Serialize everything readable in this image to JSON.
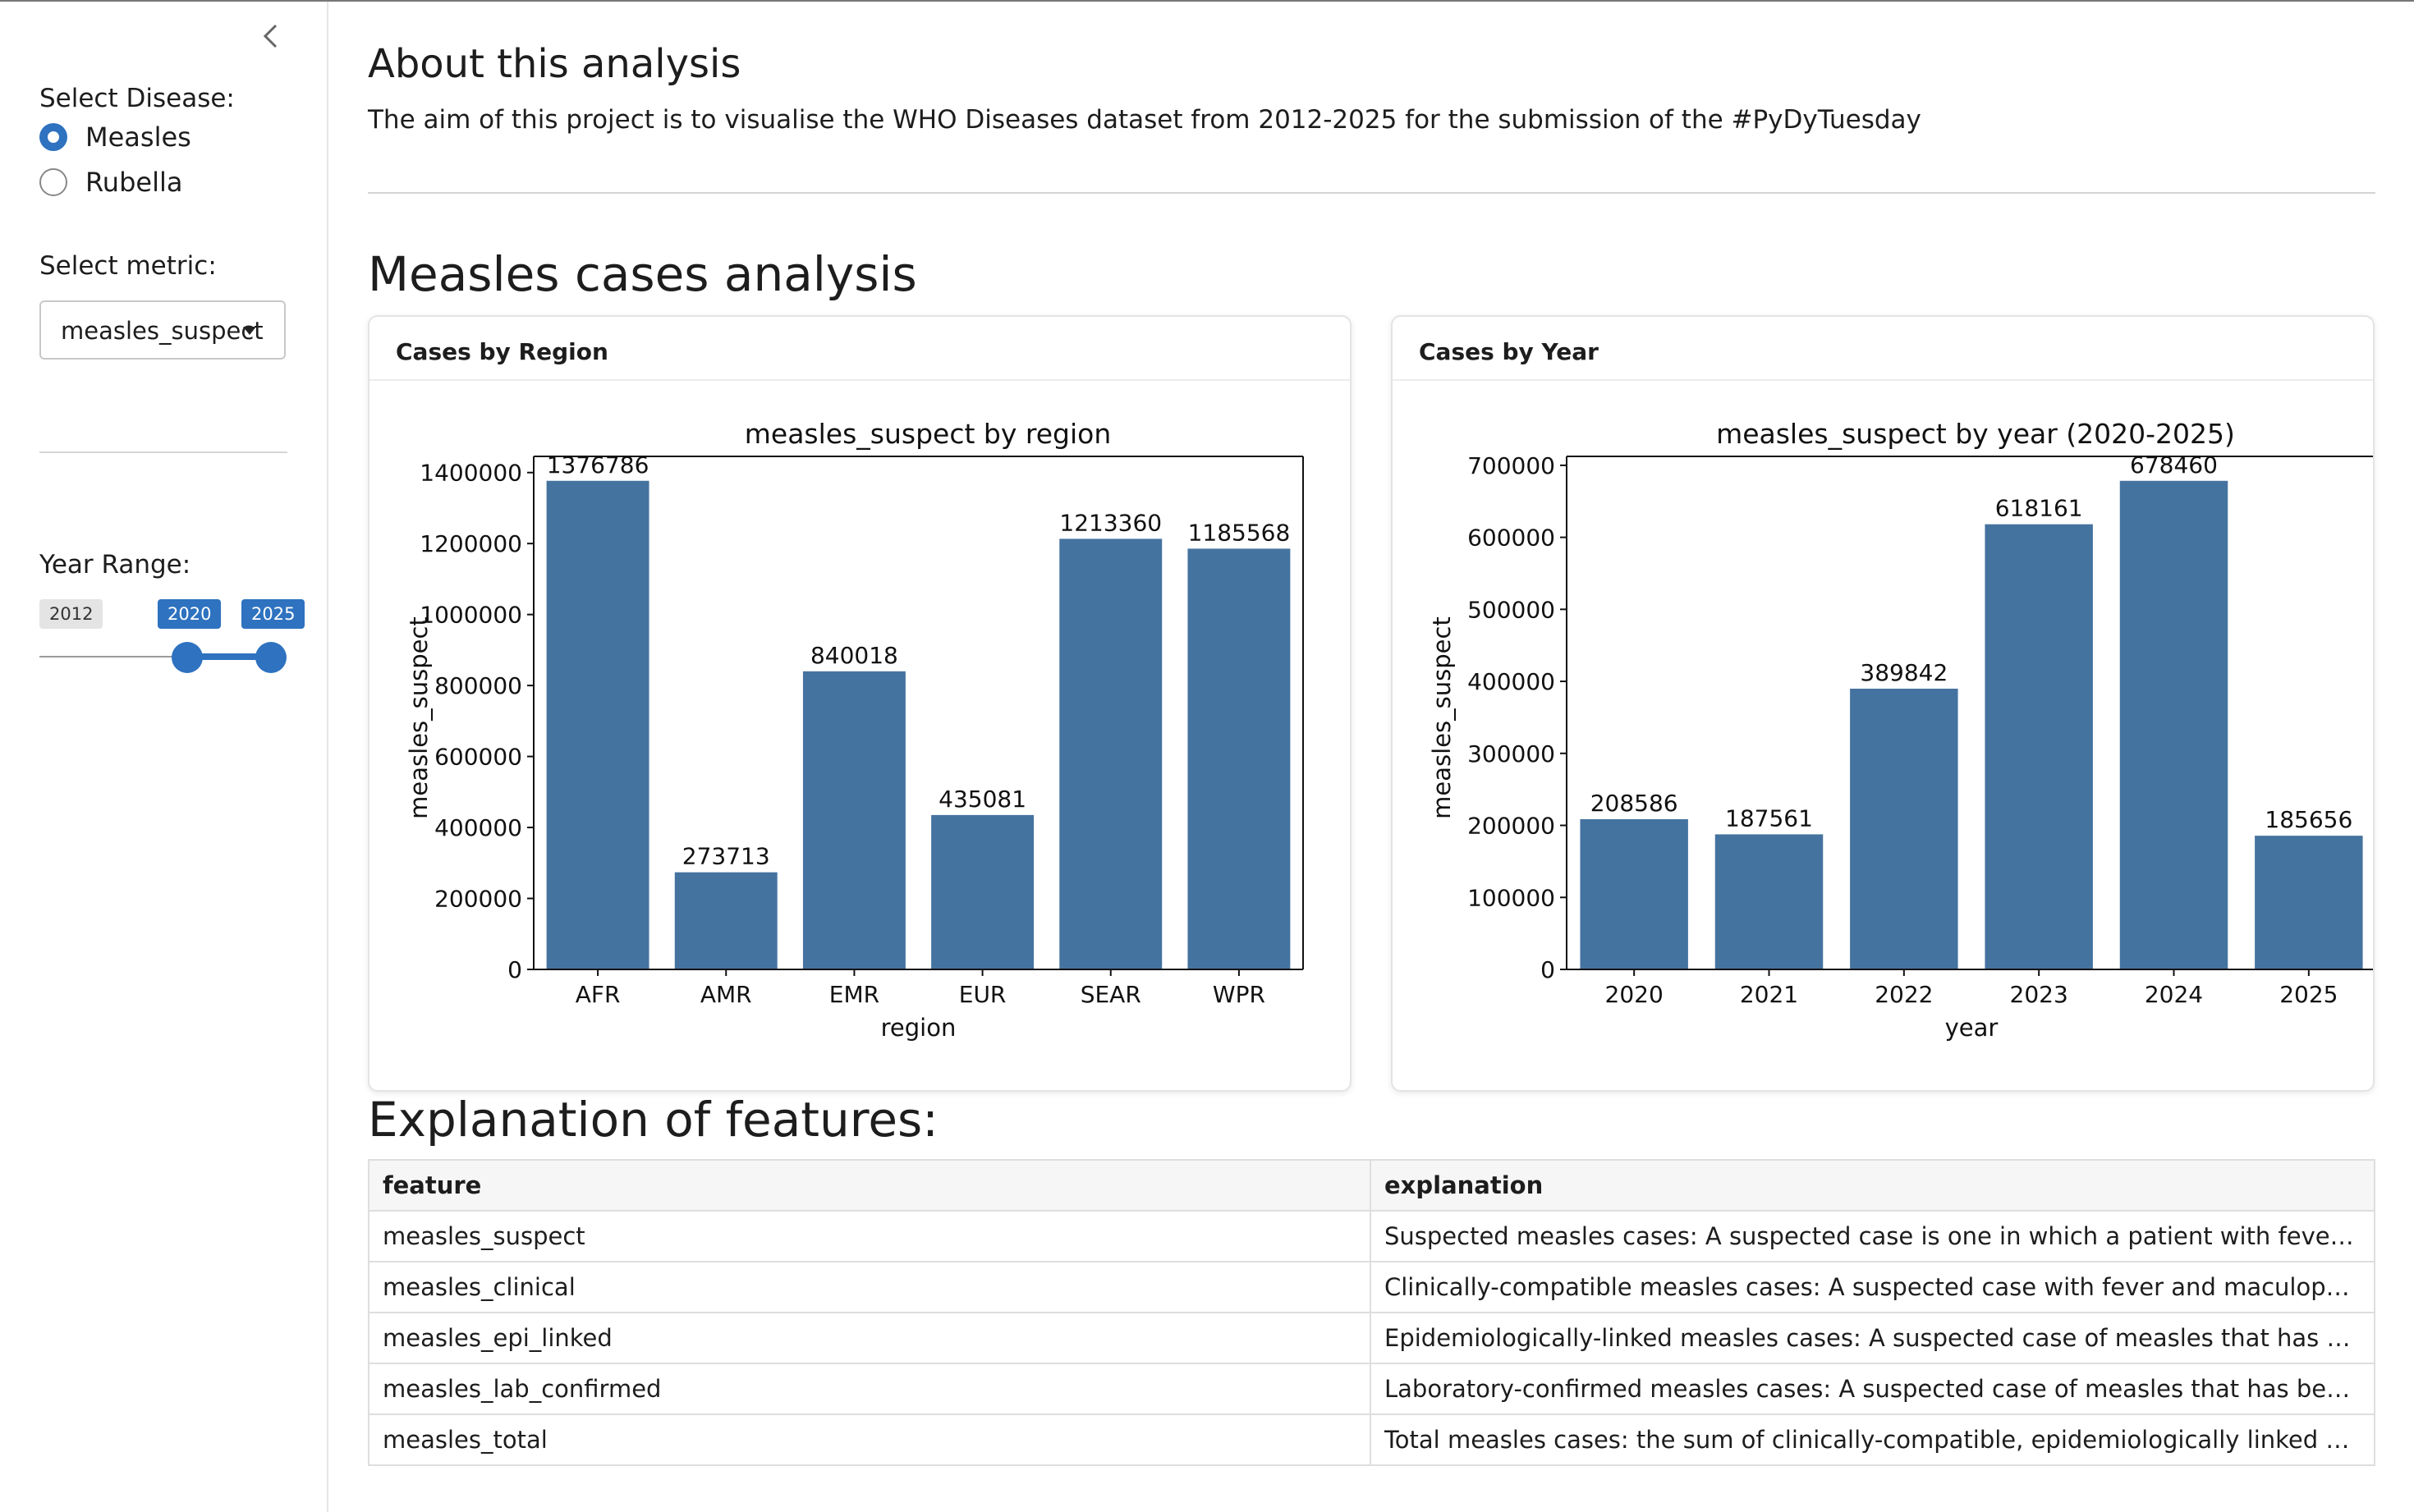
{
  "sidebar": {
    "collapse_icon": "chevron-left-icon",
    "disease_label": "Select Disease:",
    "diseases": [
      {
        "label": "Measles",
        "checked": true
      },
      {
        "label": "Rubella",
        "checked": false
      }
    ],
    "metric_label": "Select metric:",
    "metric_value": "measles_suspect",
    "year_label": "Year Range:",
    "year_min": "2012",
    "year_from": "2020",
    "year_to": "2025",
    "year_range_fraction": [
      0.6154,
      1.0
    ]
  },
  "main": {
    "about_title": "About this analysis",
    "about_text": "The aim of this project is to visualise the WHO Diseases dataset from 2012-2025 for the submission of the #PyDyTuesday",
    "section_title": "Measles cases analysis",
    "card_region_title": "Cases by Region",
    "card_year_title": "Cases by Year",
    "features_title": "Explanation of features:",
    "table": {
      "headers": [
        "feature",
        "explanation"
      ],
      "rows": [
        [
          "measles_suspect",
          "Suspected measles cases: A suspected case is one in which a patient with fever and maculopapular rash"
        ],
        [
          "measles_clinical",
          "Clinically-compatible measles cases: A suspected case with fever and maculopapular (non-vesicular) rash"
        ],
        [
          "measles_epi_linked",
          "Epidemiologically-linked measles cases: A suspected case of measles that has not been adequately tested"
        ],
        [
          "measles_lab_confirmed",
          "Laboratory-confirmed measles cases: A suspected case of measles that has been confirmed by a laboratory"
        ],
        [
          "measles_total",
          "Total measles cases: the sum of clinically-compatible, epidemiologically linked and laboratory-confirmed cases"
        ]
      ]
    }
  },
  "colors": {
    "accent": "#2e72c0",
    "bar": "#4573a0"
  },
  "chart_data": [
    {
      "type": "bar",
      "title": "measles_suspect by region",
      "xlabel": "region",
      "ylabel": "measles_suspect",
      "categories": [
        "AFR",
        "AMR",
        "EMR",
        "EUR",
        "SEAR",
        "WPR"
      ],
      "values": [
        1376786,
        273713,
        840018,
        435081,
        1213360,
        1185568
      ],
      "yticks": [
        0,
        200000,
        400000,
        600000,
        800000,
        1000000,
        1200000,
        1400000
      ],
      "ylim": [
        0,
        1445600
      ],
      "data_labels": true,
      "grid": false,
      "frame": "box"
    },
    {
      "type": "bar",
      "title": "measles_suspect by year (2020-2025)",
      "xlabel": "year",
      "ylabel": "measles_suspect",
      "categories": [
        "2020",
        "2021",
        "2022",
        "2023",
        "2024",
        "2025"
      ],
      "values": [
        208586,
        187561,
        389842,
        618161,
        678460,
        185656
      ],
      "yticks": [
        0,
        100000,
        200000,
        300000,
        400000,
        500000,
        600000,
        700000
      ],
      "ylim": [
        0,
        712400
      ],
      "data_labels": true,
      "grid": false,
      "frame": "left-bottom-top"
    }
  ]
}
